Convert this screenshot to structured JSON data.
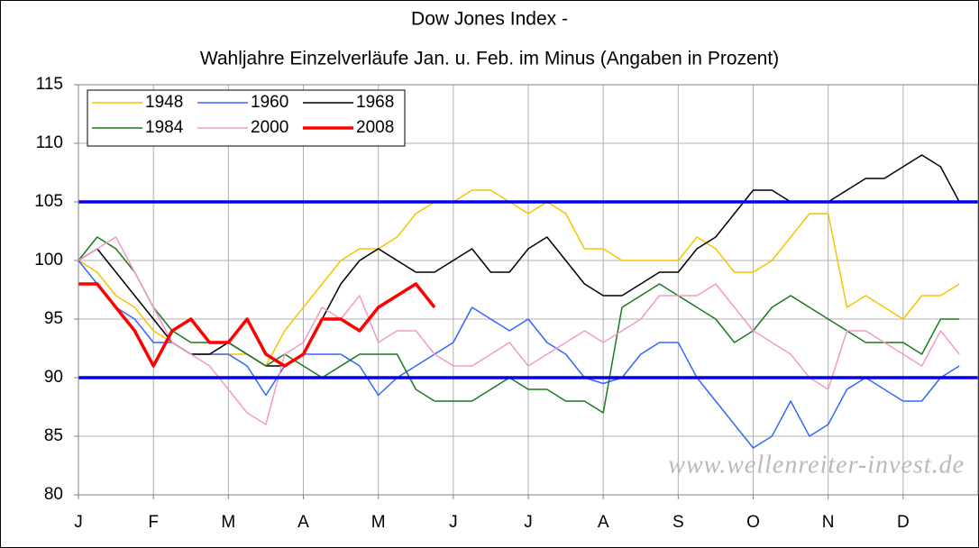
{
  "chart_data": {
    "type": "line",
    "title": "Dow Jones Index -",
    "subtitle": "Wahljahre Einzelverläufe Jan. u. Feb. im Minus (Angaben in Prozent)",
    "annotation": "www.wellenreiter-invest.de",
    "categories": [
      "J",
      null,
      null,
      null,
      "F",
      null,
      null,
      null,
      "M",
      null,
      null,
      null,
      "A",
      null,
      null,
      null,
      "M",
      null,
      null,
      null,
      "J",
      null,
      null,
      null,
      "J",
      null,
      null,
      null,
      "A",
      null,
      null,
      null,
      "S",
      null,
      null,
      null,
      "O",
      null,
      null,
      null,
      "N",
      null,
      null,
      null,
      "D",
      null,
      null,
      null
    ],
    "ylim": [
      80,
      115
    ],
    "yticks": [
      80,
      85,
      90,
      95,
      100,
      105,
      110,
      115
    ],
    "grid": true,
    "hlines": [
      105,
      90
    ],
    "hline_color": "#0000ee",
    "legend": "upper left",
    "series": [
      {
        "name": "1948",
        "color": "#f5c400",
        "width": 1.5,
        "values": [
          100,
          99,
          97,
          96,
          94,
          93,
          92,
          92,
          92,
          92,
          91,
          94,
          96,
          98,
          100,
          101,
          101,
          102,
          104,
          105,
          105,
          106,
          106,
          105,
          104,
          105,
          104,
          101,
          101,
          100,
          100,
          100,
          100,
          102,
          101,
          99,
          99,
          100,
          102,
          104,
          104,
          96,
          97,
          96,
          95,
          97,
          97,
          98
        ]
      },
      {
        "name": "1960",
        "color": "#3366ff",
        "width": 1.5,
        "values": [
          100,
          98,
          96,
          95,
          93,
          93,
          92,
          92,
          92,
          91,
          88.5,
          91,
          92,
          92,
          92,
          91,
          88.5,
          90,
          91,
          92,
          93,
          96,
          95,
          94,
          95,
          93,
          92,
          90,
          89.5,
          90,
          92,
          93,
          93,
          90,
          88,
          86,
          84,
          85,
          88,
          85,
          86,
          89,
          90,
          89,
          88,
          88,
          90,
          91
        ]
      },
      {
        "name": "1968",
        "color": "#000000",
        "width": 1.5,
        "values": [
          100,
          101,
          99,
          97,
          95,
          93,
          92,
          92,
          93,
          92,
          91,
          91,
          92,
          95,
          98,
          100,
          101,
          100,
          99,
          99,
          100,
          101,
          99,
          99,
          101,
          102,
          100,
          98,
          97,
          97,
          98,
          99,
          99,
          101,
          102,
          104,
          106,
          106,
          105,
          105,
          105,
          106,
          107,
          107,
          108,
          109,
          108,
          105
        ]
      },
      {
        "name": "1984",
        "color": "#1a7a1a",
        "width": 1.5,
        "values": [
          100,
          102,
          101,
          99,
          96,
          94,
          93,
          93,
          93,
          92,
          91,
          92,
          91,
          90,
          91,
          92,
          92,
          92,
          89,
          88,
          88,
          88,
          89,
          90,
          89,
          89,
          88,
          88,
          87,
          96,
          97,
          98,
          97,
          96,
          95,
          93,
          94,
          96,
          97,
          96,
          95,
          94,
          93,
          93,
          93,
          92,
          95,
          95
        ]
      },
      {
        "name": "2000",
        "color": "#f29ac8",
        "width": 1.5,
        "values": [
          100,
          101,
          102,
          99,
          96,
          93,
          92,
          91,
          89,
          87,
          86,
          92,
          93,
          96,
          95,
          97,
          93,
          94,
          94,
          92,
          91,
          91,
          92,
          93,
          91,
          92,
          93,
          94,
          93,
          94,
          95,
          97,
          97,
          97,
          98,
          96,
          94,
          93,
          92,
          90,
          89,
          94,
          94,
          93,
          92,
          91,
          94,
          92
        ]
      },
      {
        "name": "2008",
        "color": "#ff0000",
        "width": 3.5,
        "values": [
          98,
          98,
          96,
          94,
          91,
          94,
          95,
          93,
          93,
          95,
          92,
          91,
          92,
          95,
          95,
          94,
          96,
          97,
          98,
          96,
          null,
          null,
          null,
          null,
          null,
          null,
          null,
          null,
          null,
          null,
          null,
          null,
          null,
          null,
          null,
          null,
          null,
          null,
          null,
          null,
          null,
          null,
          null,
          null,
          null,
          null,
          null,
          null
        ]
      }
    ]
  }
}
